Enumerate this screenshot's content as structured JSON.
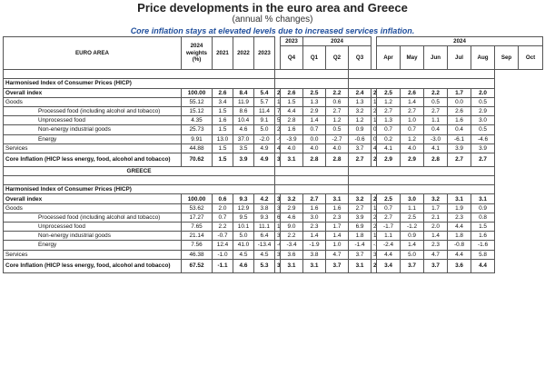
{
  "header": {
    "title": "Price developments in the euro area and Greece",
    "subtitle": "(annual % changes)",
    "note": "Core inflation stays at elevated levels due to increased services inflation."
  },
  "columns": {
    "group_label": "EURO AREA",
    "weights_label": "2024 weights (%)",
    "years": [
      "2021",
      "2022",
      "2023"
    ],
    "y2023": "2023",
    "y2024a": "2024",
    "y2024b": "2024",
    "quarters_2023": [
      "Q4"
    ],
    "quarters_2024": [
      "Q1",
      "Q2",
      "Q3"
    ],
    "months_2024": [
      "Apr",
      "May",
      "Jun",
      "Jul",
      "Aug",
      "Sep",
      "Oct"
    ]
  },
  "euro_area": {
    "section_label": "Harmonised Index of Consumer Prices (HICP)",
    "rows": [
      {
        "label": "Overall index",
        "bold": true,
        "indent": false,
        "cells": [
          "100.00",
          "2.6",
          "8.4",
          "5.4",
          "2.7",
          "2.6",
          "2.5",
          "2.2",
          "2.4",
          "2.6",
          "2.5",
          "2.6",
          "2.2",
          "1.7",
          "2.0"
        ]
      },
      {
        "label": "Goods",
        "bold": false,
        "indent": false,
        "cells": [
          "55.12",
          "3.4",
          "11.9",
          "5.7",
          "1.7",
          "1.5",
          "1.3",
          "0.6",
          "1.3",
          "1.3",
          "1.2",
          "1.4",
          "0.5",
          "0.0",
          "0.5"
        ]
      },
      {
        "label": "Processed food (including alcohol and tobacco)",
        "bold": false,
        "indent": true,
        "cells": [
          "15.12",
          "1.5",
          "8.6",
          "11.4",
          "7.1",
          "4.4",
          "2.9",
          "2.7",
          "3.2",
          "2.8",
          "2.7",
          "2.7",
          "2.7",
          "2.6",
          "2.9"
        ]
      },
      {
        "label": "Unprocessed food",
        "bold": false,
        "indent": true,
        "cells": [
          "4.35",
          "1.6",
          "10.4",
          "9.1",
          "5.9",
          "2.8",
          "1.4",
          "1.2",
          "1.2",
          "1.8",
          "1.3",
          "1.0",
          "1.1",
          "1.6",
          "3.0"
        ]
      },
      {
        "label": "Non-energy industrial goods",
        "bold": false,
        "indent": true,
        "cells": [
          "25.73",
          "1.5",
          "4.6",
          "5.0",
          "2.9",
          "1.6",
          "0.7",
          "0.5",
          "0.9",
          "0.7",
          "0.7",
          "0.7",
          "0.4",
          "0.4",
          "0.5"
        ]
      },
      {
        "label": "Energy",
        "bold": false,
        "indent": true,
        "cells": [
          "9.91",
          "13.0",
          "37.0",
          "-2.0",
          "-9.8",
          "-3.9",
          "0.0",
          "-2.7",
          "-0.6",
          "0.3",
          "0.2",
          "1.2",
          "-3.0",
          "-6.1",
          "-4.6"
        ]
      },
      {
        "label": "Services",
        "bold": false,
        "indent": false,
        "cells": [
          "44.88",
          "1.5",
          "3.5",
          "4.9",
          "4.2",
          "4.0",
          "4.0",
          "4.0",
          "3.7",
          "4.1",
          "4.1",
          "4.0",
          "4.1",
          "3.9",
          "3.9"
        ]
      },
      {
        "label": "Core Inflation (HICP less energy, food, alcohol and tobacco)",
        "bold": true,
        "indent": false,
        "cells": [
          "70.62",
          "1.5",
          "3.9",
          "4.9",
          "3.7",
          "3.1",
          "2.8",
          "2.8",
          "2.7",
          "2.9",
          "2.9",
          "2.9",
          "2.8",
          "2.7",
          "2.7"
        ]
      }
    ]
  },
  "greece": {
    "group_label": "GREECE",
    "section_label": "Harmonised Index of Consumer Prices (HICP)",
    "rows": [
      {
        "label": "Overall index",
        "bold": true,
        "indent": false,
        "cells": [
          "100.00",
          "0.6",
          "9.3",
          "4.2",
          "3.5",
          "3.2",
          "2.7",
          "3.1",
          "3.2",
          "2.4",
          "2.5",
          "3.0",
          "3.2",
          "3.1",
          "3.1"
        ]
      },
      {
        "label": "Goods",
        "bold": false,
        "indent": false,
        "cells": [
          "53.62",
          "2.0",
          "12.9",
          "3.8",
          "3.7",
          "2.9",
          "1.6",
          "1.6",
          "2.7",
          "1.4",
          "0.7",
          "1.1",
          "1.7",
          "1.9",
          "0.9"
        ]
      },
      {
        "label": "Processed food (including alcohol and tobacco)",
        "bold": false,
        "indent": true,
        "cells": [
          "17.27",
          "0.7",
          "9.5",
          "9.3",
          "6.1",
          "4.6",
          "3.0",
          "2.3",
          "3.9",
          "2.5",
          "2.7",
          "2.5",
          "2.1",
          "2.3",
          "0.8"
        ]
      },
      {
        "label": "Unprocessed food",
        "bold": false,
        "indent": true,
        "cells": [
          "7.65",
          "2.2",
          "10.1",
          "11.1",
          "12.5",
          "9.0",
          "2.3",
          "1.7",
          "6.9",
          "2.2",
          "-1.7",
          "-1.2",
          "2.0",
          "4.4",
          "1.5"
        ]
      },
      {
        "label": "Non-energy industrial goods",
        "bold": false,
        "indent": true,
        "cells": [
          "21.14",
          "-0.7",
          "5.0",
          "6.4",
          "3.2",
          "2.2",
          "1.4",
          "1.4",
          "1.8",
          "1.5",
          "1.1",
          "0.9",
          "1.4",
          "1.8",
          "1.6"
        ]
      },
      {
        "label": "Energy",
        "bold": false,
        "indent": true,
        "cells": [
          "7.56",
          "12.4",
          "41.0",
          "-13.4",
          "-6.0",
          "-3.4",
          "-1.9",
          "1.0",
          "-1.4",
          "-1.8",
          "-2.4",
          "1.4",
          "2.3",
          "-0.8",
          "-1.6"
        ]
      },
      {
        "label": "Services",
        "bold": false,
        "indent": false,
        "cells": [
          "46.38",
          "-1.0",
          "4.5",
          "4.5",
          "3.1",
          "3.6",
          "3.8",
          "4.7",
          "3.7",
          "3.3",
          "4.4",
          "5.0",
          "4.7",
          "4.4",
          "5.8"
        ]
      },
      {
        "label": "Core Inflation (HICP less energy, food, alcohol and tobacco)",
        "bold": true,
        "indent": false,
        "cells": [
          "67.52",
          "-1.1",
          "4.6",
          "5.3",
          "3.2",
          "3.1",
          "3.1",
          "3.7",
          "3.1",
          "2.8",
          "3.4",
          "3.7",
          "3.7",
          "3.6",
          "4.4"
        ]
      }
    ]
  }
}
